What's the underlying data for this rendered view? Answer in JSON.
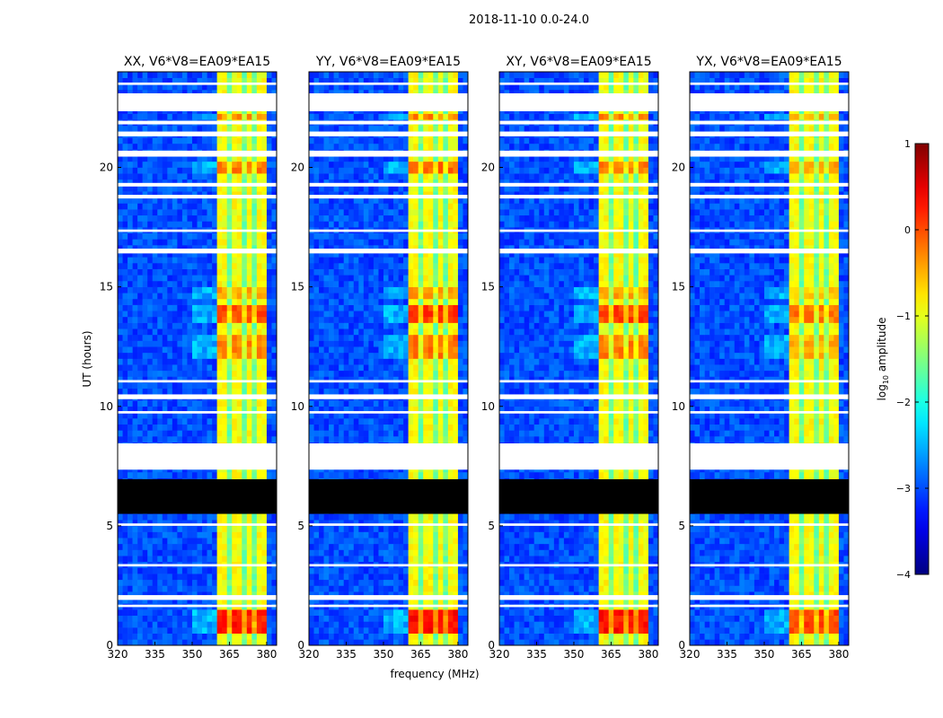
{
  "suptitle": "2018-11-10 0.0-24.0",
  "chart_data": {
    "type": "heatmap",
    "xlabel": "frequency (MHz)",
    "ylabel": "UT (hours)",
    "xlim": [
      320,
      384
    ],
    "ylim": [
      0,
      24
    ],
    "xticks": [
      320,
      335,
      350,
      365,
      380
    ],
    "yticks": [
      0,
      5,
      10,
      15,
      20
    ],
    "panels": [
      {
        "title": "XX, V6*V8=EA09*EA15",
        "strength": 0
      },
      {
        "title": "YY, V6*V8=EA09*EA15",
        "strength": 0.1
      },
      {
        "title": "XY, V6*V8=EA09*EA15",
        "strength": 0.05
      },
      {
        "title": "YX, V6*V8=EA09*EA15",
        "strength": -0.2
      }
    ],
    "background_log_amplitude": -3.0,
    "signal_band_mhz": [
      361,
      380
    ],
    "signal_band_log_amplitude": -0.9,
    "band_gaps_mhz": [
      365.5,
      370.5,
      375
    ],
    "bright_periods_hours": [
      {
        "range": [
          0.6,
          1.4
        ],
        "log_amplitude": 0.25
      },
      {
        "range": [
          13.5,
          14.3
        ],
        "log_amplitude": 0.0
      },
      {
        "range": [
          12.0,
          13.0
        ],
        "log_amplitude": -0.3
      },
      {
        "range": [
          19.7,
          20.3
        ],
        "log_amplitude": -0.25
      },
      {
        "range": [
          22.0,
          22.3
        ],
        "log_amplitude": -0.35
      },
      {
        "range": [
          14.5,
          15.0
        ],
        "log_amplitude": -0.45
      }
    ],
    "flagged_blank_hours": [
      [
        7.35,
        8.45
      ],
      [
        22.35,
        23.1
      ],
      [
        1.6,
        1.7
      ],
      [
        1.9,
        2.1
      ],
      [
        3.3,
        3.4
      ],
      [
        5.0,
        5.1
      ],
      [
        9.7,
        9.8
      ],
      [
        10.3,
        10.5
      ],
      [
        11.0,
        11.1
      ],
      [
        16.4,
        16.6
      ],
      [
        17.3,
        17.4
      ],
      [
        18.7,
        18.85
      ],
      [
        19.2,
        19.35
      ],
      [
        20.45,
        20.7
      ],
      [
        21.3,
        21.5
      ],
      [
        21.8,
        21.95
      ],
      [
        23.45,
        23.55
      ]
    ],
    "flagged_zero_hours": [
      [
        5.5,
        6.95
      ]
    ],
    "colorbar": {
      "label": "log",
      "label_sub": "10",
      "label_rest": " amplitude",
      "range": [
        -4,
        1
      ],
      "ticks": [
        "1",
        "0",
        "−1",
        "−2",
        "−3",
        "−4"
      ],
      "colormap": "jet"
    }
  }
}
